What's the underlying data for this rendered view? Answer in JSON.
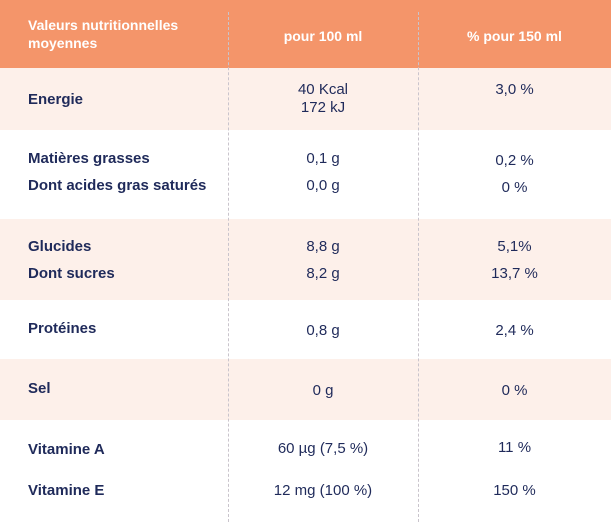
{
  "header": {
    "label_line1": "Valeurs nutritionnelles",
    "label_line2": "moyennes",
    "col_per_100": "pour 100 ml",
    "col_per_150": "% pour 150 ml"
  },
  "rows": [
    {
      "label": "Energie",
      "val1_line1": "40 Kcal",
      "val1_line2": "172 kJ",
      "val2": "3,0 %"
    },
    {
      "label": "Matières grasses",
      "val1": "0,1 g",
      "val2": "0,2 %"
    },
    {
      "label": "Dont acides gras saturés",
      "val1": "0,0 g",
      "val2": "0 %"
    },
    {
      "label": "Glucides",
      "val1": "8,8 g",
      "val2": "5,1%"
    },
    {
      "label": "Dont sucres",
      "val1": "8,2 g",
      "val2": "13,7 %"
    },
    {
      "label": "Protéines",
      "val1": "0,8 g",
      "val2": "2,4 %"
    },
    {
      "label": "Sel",
      "val1": "0 g",
      "val2": "0 %"
    },
    {
      "label": "Vitamine A",
      "val1": "60 µg (7,5  %)",
      "val2": "11 %"
    },
    {
      "label": "Vitamine E",
      "val1": "12 mg (100 %)",
      "val2": "150 %"
    }
  ],
  "colors": {
    "header_bg": "#f4956a",
    "band_alt": "#fdf0ea",
    "text": "#1f2a5a"
  }
}
